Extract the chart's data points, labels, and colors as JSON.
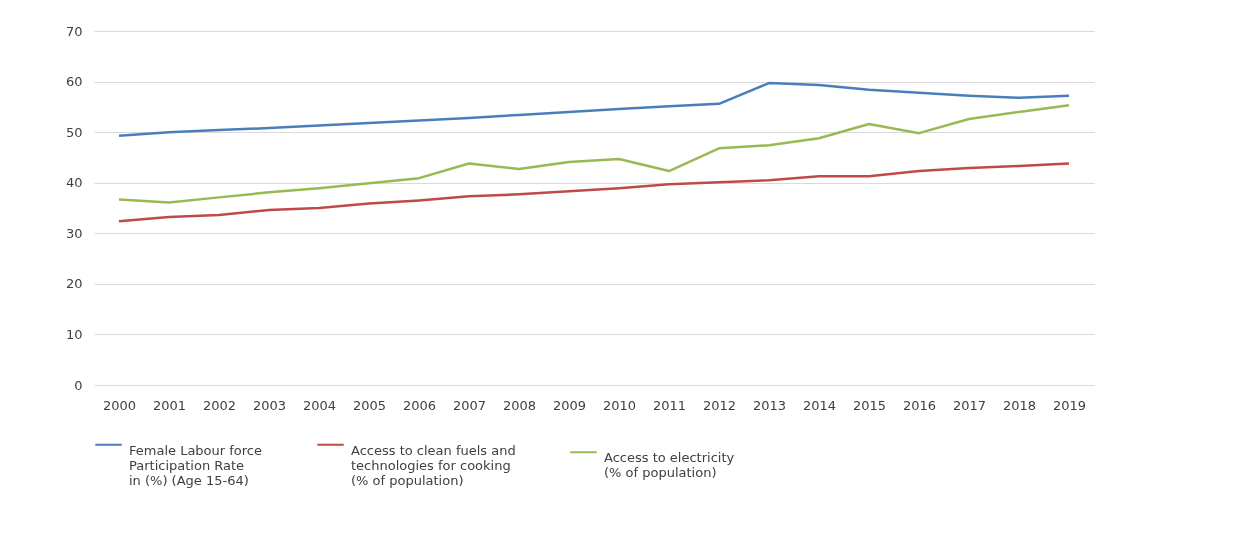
{
  "chart_data": {
    "type": "line",
    "categories": [
      "2000",
      "2001",
      "2002",
      "2003",
      "2004",
      "2005",
      "2006",
      "2007",
      "2008",
      "2009",
      "2010",
      "2011",
      "2012",
      "2013",
      "2014",
      "2015",
      "2016",
      "2017",
      "2018",
      "2019"
    ],
    "series": [
      {
        "name": "Female Labour force\nParticipation  Rate\nin (%) (Age 15-64)",
        "color": "#4a7ebb",
        "values": [
          49.3,
          50.0,
          50.4,
          50.8,
          51.3,
          51.8,
          52.3,
          52.8,
          53.4,
          54.0,
          54.6,
          55.1,
          55.6,
          59.7,
          59.3,
          58.4,
          57.8,
          57.2,
          56.8,
          57.2
        ]
      },
      {
        "name": "Access to clean fuels and\ntechnologies for cooking\n(% of population)",
        "color": "#be4b48",
        "values": [
          32.4,
          33.2,
          33.6,
          34.6,
          35.0,
          35.9,
          36.5,
          37.3,
          37.7,
          38.3,
          38.9,
          39.7,
          40.1,
          40.5,
          41.3,
          41.3,
          42.3,
          42.9,
          43.3,
          43.8
        ]
      },
      {
        "name": "Access to electricity\n(% of population)",
        "color": "#98b954",
        "values": [
          36.7,
          36.1,
          37.1,
          38.1,
          38.9,
          39.9,
          40.9,
          43.8,
          42.7,
          44.1,
          44.7,
          42.3,
          46.8,
          47.4,
          48.8,
          51.6,
          49.8,
          52.6,
          54.0,
          55.3
        ]
      }
    ],
    "ylim": [
      0,
      70
    ],
    "yticks": [
      0,
      10,
      20,
      30,
      40,
      50,
      60,
      70
    ],
    "grid": "y",
    "legend": "bottom",
    "marker": "none",
    "line_style": "solid"
  }
}
